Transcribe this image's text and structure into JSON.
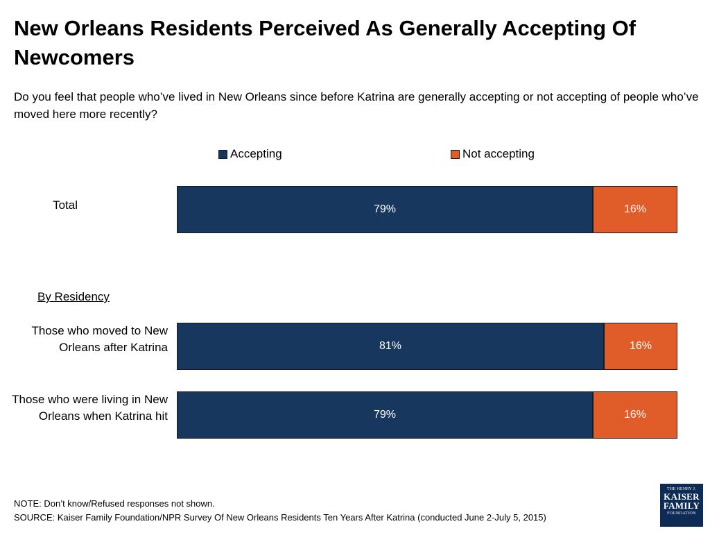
{
  "title": "New Orleans Residents Perceived As Generally Accepting Of Newcomers",
  "subtitle": "Do you feel that people who’ve lived in New Orleans since before Katrina are generally accepting or not accepting of people who’ve moved here more recently?",
  "legend": {
    "accepting": "Accepting",
    "not_accepting": "Not accepting"
  },
  "group_label": "By Residency",
  "colors": {
    "accepting": "#17375e",
    "not_accepting": "#e05c28"
  },
  "footer": {
    "note": "NOTE: Don’t know/Refused responses not shown.",
    "source": "SOURCE: Kaiser Family Foundation/NPR Survey Of New Orleans Residents Ten Years After Katrina (conducted June 2-July 5, 2015)"
  },
  "logo": {
    "line1": "THE HENRY J.",
    "line2": "KAISER",
    "line3": "FAMILY",
    "line4": "FOUNDATION"
  },
  "chart_data": {
    "type": "bar",
    "orientation": "horizontal",
    "stacked": true,
    "categories": [
      "Total",
      "Those who moved to New Orleans after Katrina",
      "Those who were living in New Orleans when Katrina hit"
    ],
    "series": [
      {
        "name": "Accepting",
        "values": [
          79,
          81,
          79
        ],
        "labels": [
          "79%",
          "81%",
          "79%"
        ]
      },
      {
        "name": "Not accepting",
        "values": [
          16,
          16,
          16
        ],
        "labels": [
          "16%",
          "16%",
          "16%"
        ]
      }
    ],
    "legend_position": "top",
    "grid": false
  }
}
